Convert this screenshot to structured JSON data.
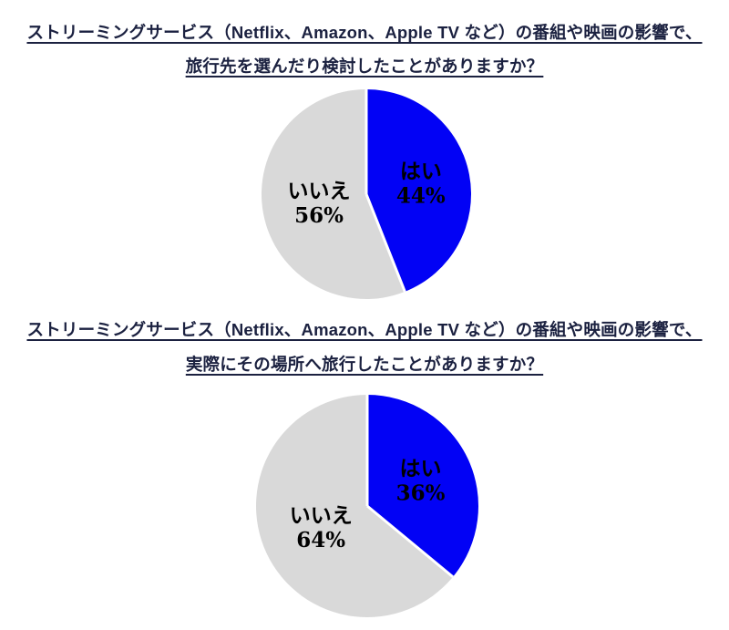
{
  "page": {
    "background": "#ffffff"
  },
  "styles": {
    "title_color": "#1b2140",
    "label_color": "#000000",
    "slice_divider_color": "#ffffff",
    "pie_blue": "#0202f5",
    "pie_gray": "#d9d9d9"
  },
  "chart_data": [
    {
      "type": "pie",
      "title": "ストリーミングサービス（Netflix、Amazon、Apple TV など）の番組や映画の影響で、旅行先を選んだり検討したことがありますか？",
      "title_lines": [
        "ストリーミングサービス（Netflix、Amazon、Apple TV など）の番組や映画の影響で、",
        "旅行先を選んだり検討したことがありますか？"
      ],
      "labels": [
        "はい",
        "いいえ"
      ],
      "slice_ids": [
        "yes",
        "no"
      ],
      "values": [
        44,
        56
      ],
      "value_suffix": "%",
      "colors": [
        "#0202f5",
        "#d9d9d9"
      ],
      "start_angle_deg": 0,
      "direction": "clockwise",
      "legend": "none",
      "data_label_style": "category name and percent inside slice"
    },
    {
      "type": "pie",
      "title": "ストリーミングサービス（Netflix、Amazon、Apple TV など）の番組や映画の影響で、実際にその場所へ旅行したことがありますか？",
      "title_lines": [
        "ストリーミングサービス（Netflix、Amazon、Apple TV など）の番組や映画の影響で、",
        "実際にその場所へ旅行したことがありますか？"
      ],
      "labels": [
        "はい",
        "いいえ"
      ],
      "slice_ids": [
        "yes",
        "no"
      ],
      "values": [
        36,
        64
      ],
      "value_suffix": "%",
      "colors": [
        "#0202f5",
        "#d9d9d9"
      ],
      "start_angle_deg": 0,
      "direction": "clockwise",
      "legend": "none",
      "data_label_style": "category name and percent inside slice"
    }
  ]
}
